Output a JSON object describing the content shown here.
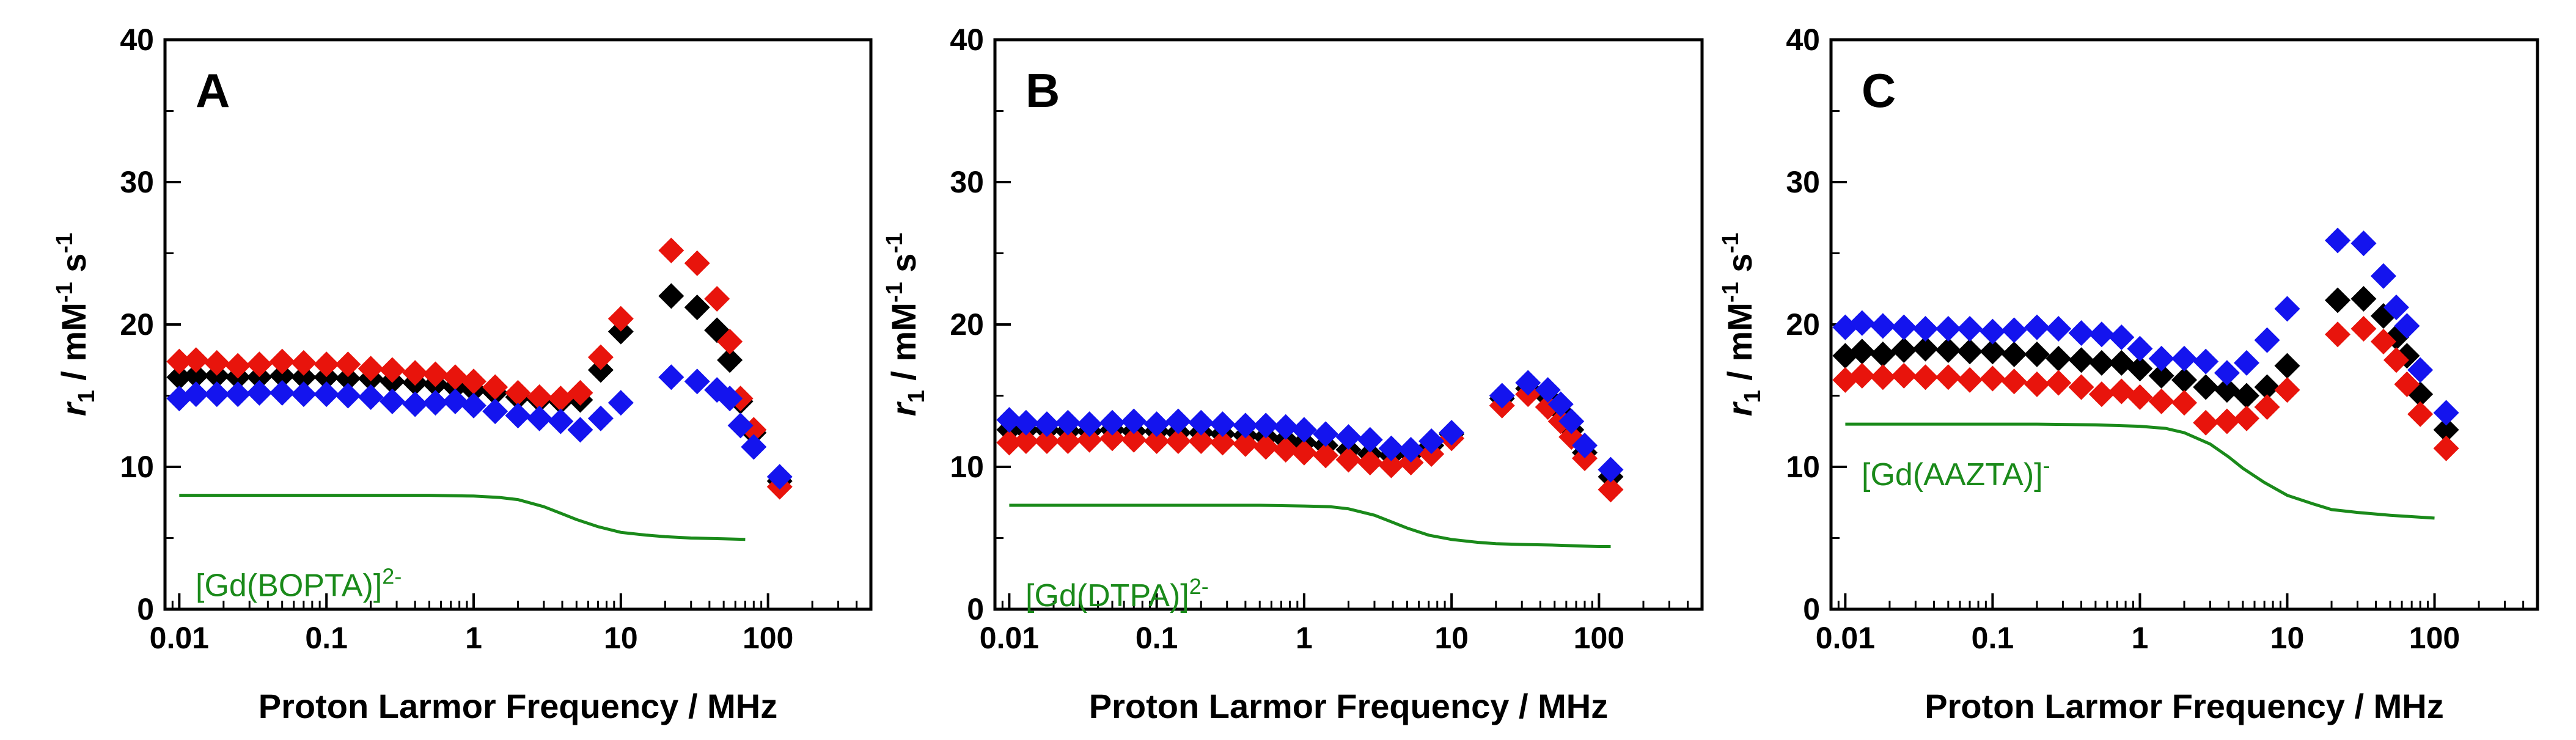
{
  "chart_data": [
    {
      "type": "scatter",
      "panel": "A",
      "xlabel": "Proton Larmor Frequency / MHz",
      "ylabel_main": "r",
      "ylabel_sub": "1",
      "ylabel_rest": " / mM",
      "ylabel_exp1": "-1",
      "ylabel_s": " s",
      "ylabel_exp2": "-1",
      "x_scale": "log",
      "xlim": [
        0.008,
        500
      ],
      "ylim": [
        0,
        40
      ],
      "xticks": [
        "0.01",
        "0.1",
        "1",
        "10",
        "100"
      ],
      "yticks": [
        "0",
        "10",
        "20",
        "30",
        "40"
      ],
      "reference": {
        "label_main": "[Gd(BOPTA)]",
        "label_sup": "2-",
        "color": "#1a8a1a",
        "x": [
          0.01,
          0.02,
          0.05,
          0.1,
          0.2,
          0.5,
          1,
          1.5,
          2,
          3,
          4,
          5,
          7,
          10,
          15,
          20,
          30,
          50,
          70
        ],
        "y": [
          8.0,
          8.0,
          8.0,
          8.0,
          8.0,
          8.0,
          7.95,
          7.85,
          7.7,
          7.2,
          6.7,
          6.3,
          5.8,
          5.4,
          5.2,
          5.1,
          5.0,
          4.95,
          4.9
        ]
      },
      "series": [
        {
          "color": "#000000",
          "x": [
            0.01,
            0.013,
            0.018,
            0.025,
            0.035,
            0.05,
            0.07,
            0.1,
            0.14,
            0.2,
            0.28,
            0.4,
            0.55,
            0.75,
            1,
            1.4,
            2,
            2.8,
            3.9,
            5.3,
            7.3,
            10,
            22,
            33,
            45,
            55,
            65,
            80,
            120
          ],
          "y": [
            16.3,
            16.4,
            16.4,
            16.3,
            16.3,
            16.4,
            16.3,
            16.3,
            16.2,
            16.2,
            16.0,
            15.9,
            15.8,
            15.6,
            15.4,
            15.2,
            14.9,
            14.7,
            14.6,
            14.7,
            16.8,
            19.5,
            22.0,
            21.2,
            19.6,
            17.5,
            14.6,
            12.4,
            9.0
          ]
        },
        {
          "color": "#e8140c",
          "x": [
            0.01,
            0.013,
            0.018,
            0.025,
            0.035,
            0.05,
            0.07,
            0.1,
            0.14,
            0.2,
            0.28,
            0.4,
            0.55,
            0.75,
            1,
            1.4,
            2,
            2.8,
            3.9,
            5.3,
            7.3,
            10,
            22,
            33,
            45,
            55,
            65,
            80,
            120
          ],
          "y": [
            17.4,
            17.5,
            17.3,
            17.1,
            17.2,
            17.4,
            17.3,
            17.2,
            17.2,
            16.9,
            16.8,
            16.6,
            16.5,
            16.3,
            16.0,
            15.6,
            15.2,
            14.9,
            14.8,
            15.2,
            17.7,
            20.4,
            25.2,
            24.3,
            21.8,
            18.8,
            14.8,
            12.6,
            8.6
          ]
        },
        {
          "color": "#1414ee",
          "x": [
            0.01,
            0.013,
            0.018,
            0.025,
            0.035,
            0.05,
            0.07,
            0.1,
            0.14,
            0.2,
            0.28,
            0.4,
            0.55,
            0.75,
            1,
            1.4,
            2,
            2.8,
            3.9,
            5.3,
            7.3,
            10,
            22,
            33,
            45,
            55,
            65,
            80,
            120
          ],
          "y": [
            14.8,
            15.1,
            15.1,
            15.1,
            15.2,
            15.2,
            15.1,
            15.1,
            15.0,
            14.9,
            14.6,
            14.4,
            14.5,
            14.6,
            14.3,
            13.9,
            13.6,
            13.4,
            13.2,
            12.6,
            13.4,
            14.5,
            16.3,
            16.0,
            15.4,
            14.8,
            12.9,
            11.4,
            9.3
          ]
        }
      ]
    },
    {
      "type": "scatter",
      "panel": "B",
      "xlabel": "Proton Larmor Frequency / MHz",
      "ylabel_main": "r",
      "ylabel_sub": "1",
      "ylabel_rest": " / mM",
      "ylabel_exp1": "-1",
      "ylabel_s": " s",
      "ylabel_exp2": "-1",
      "x_scale": "log",
      "xlim": [
        0.008,
        500
      ],
      "ylim": [
        0,
        40
      ],
      "xticks": [
        "0.01",
        "0.1",
        "1",
        "10",
        "100"
      ],
      "yticks": [
        "0",
        "10",
        "20",
        "30",
        "40"
      ],
      "reference": {
        "label_main": "[Gd(DTPA)]",
        "label_sup": "2-",
        "color": "#1a8a1a",
        "x": [
          0.01,
          0.02,
          0.05,
          0.1,
          0.2,
          0.5,
          1,
          1.5,
          2,
          3,
          4,
          5,
          7,
          10,
          15,
          20,
          30,
          50,
          70,
          100,
          120
        ],
        "y": [
          7.3,
          7.3,
          7.3,
          7.3,
          7.3,
          7.3,
          7.25,
          7.2,
          7.05,
          6.6,
          6.1,
          5.7,
          5.2,
          4.9,
          4.7,
          4.6,
          4.55,
          4.5,
          4.45,
          4.4,
          4.4
        ]
      },
      "series": [
        {
          "color": "#000000",
          "x": [
            0.01,
            0.013,
            0.018,
            0.025,
            0.035,
            0.05,
            0.07,
            0.1,
            0.14,
            0.2,
            0.28,
            0.4,
            0.55,
            0.75,
            1,
            1.4,
            2,
            2.8,
            3.9,
            5.3,
            7.3,
            10,
            22,
            33,
            45,
            55,
            65,
            80,
            120
          ],
          "y": [
            12.6,
            12.6,
            12.6,
            12.5,
            12.5,
            12.6,
            12.5,
            12.5,
            12.4,
            12.4,
            12.3,
            12.2,
            12.1,
            11.9,
            11.7,
            11.5,
            11.2,
            10.9,
            10.8,
            10.9,
            11.5,
            12.3,
            14.8,
            15.5,
            14.9,
            13.9,
            12.6,
            11.0,
            9.3
          ]
        },
        {
          "color": "#e8140c",
          "x": [
            0.01,
            0.013,
            0.018,
            0.025,
            0.035,
            0.05,
            0.07,
            0.1,
            0.14,
            0.2,
            0.28,
            0.4,
            0.55,
            0.75,
            1,
            1.4,
            2,
            2.8,
            3.9,
            5.3,
            7.3,
            10,
            22,
            33,
            45,
            55,
            65,
            80,
            120
          ],
          "y": [
            11.7,
            11.8,
            11.8,
            11.8,
            11.9,
            12.0,
            11.9,
            11.8,
            11.8,
            11.8,
            11.7,
            11.6,
            11.4,
            11.2,
            11.0,
            10.8,
            10.5,
            10.3,
            10.1,
            10.3,
            10.9,
            12.0,
            14.3,
            15.1,
            14.2,
            13.2,
            12.1,
            10.6,
            8.4
          ]
        },
        {
          "color": "#1414ee",
          "x": [
            0.01,
            0.013,
            0.018,
            0.025,
            0.035,
            0.05,
            0.07,
            0.1,
            0.14,
            0.2,
            0.28,
            0.4,
            0.55,
            0.75,
            1,
            1.4,
            2,
            2.8,
            3.9,
            5.3,
            7.3,
            10,
            22,
            33,
            45,
            55,
            65,
            80,
            120
          ],
          "y": [
            13.3,
            13.1,
            13.0,
            13.1,
            13.0,
            13.1,
            13.2,
            13.0,
            13.2,
            13.1,
            13.0,
            12.9,
            12.9,
            12.8,
            12.6,
            12.3,
            12.1,
            11.9,
            11.3,
            11.2,
            11.8,
            12.4,
            15.0,
            15.9,
            15.4,
            14.4,
            13.2,
            11.5,
            9.8
          ]
        }
      ]
    },
    {
      "type": "scatter",
      "panel": "C",
      "xlabel": "Proton Larmor Frequency / MHz",
      "ylabel_main": "r",
      "ylabel_sub": "1",
      "ylabel_rest": " / mM",
      "ylabel_exp1": "-1",
      "ylabel_s": " s",
      "ylabel_exp2": "-1",
      "x_scale": "log",
      "xlim": [
        0.008,
        500
      ],
      "ylim": [
        0,
        40
      ],
      "xticks": [
        "0.01",
        "0.1",
        "1",
        "10",
        "100"
      ],
      "yticks": [
        "0",
        "10",
        "20",
        "30",
        "40"
      ],
      "reference": {
        "label_main": "[Gd(AAZTA)]",
        "label_sup": "-",
        "color": "#1a8a1a",
        "x": [
          0.01,
          0.02,
          0.05,
          0.1,
          0.2,
          0.5,
          1,
          1.5,
          2,
          3,
          4,
          5,
          7,
          10,
          15,
          20,
          30,
          50,
          70,
          100
        ],
        "y": [
          13.0,
          13.0,
          13.0,
          13.0,
          13.0,
          12.95,
          12.85,
          12.7,
          12.4,
          11.6,
          10.7,
          9.9,
          8.9,
          8.0,
          7.4,
          7.0,
          6.8,
          6.6,
          6.5,
          6.4
        ]
      },
      "series": [
        {
          "color": "#000000",
          "x": [
            0.01,
            0.013,
            0.018,
            0.025,
            0.035,
            0.05,
            0.07,
            0.1,
            0.14,
            0.2,
            0.28,
            0.4,
            0.55,
            0.75,
            1,
            1.4,
            2,
            2.8,
            3.9,
            5.3,
            7.3,
            10,
            22,
            33,
            45,
            55,
            65,
            80,
            120
          ],
          "y": [
            17.8,
            18.1,
            17.9,
            18.2,
            18.3,
            18.2,
            18.1,
            18.1,
            17.9,
            17.9,
            17.6,
            17.5,
            17.3,
            17.3,
            16.9,
            16.4,
            16.1,
            15.6,
            15.4,
            15.0,
            15.6,
            17.1,
            21.7,
            21.8,
            20.6,
            19.1,
            17.8,
            15.1,
            12.6
          ]
        },
        {
          "color": "#e8140c",
          "x": [
            0.01,
            0.013,
            0.018,
            0.025,
            0.035,
            0.05,
            0.07,
            0.1,
            0.14,
            0.2,
            0.28,
            0.4,
            0.55,
            0.75,
            1,
            1.4,
            2,
            2.8,
            3.9,
            5.3,
            7.3,
            10,
            22,
            33,
            45,
            55,
            65,
            80,
            120
          ],
          "y": [
            16.1,
            16.4,
            16.3,
            16.4,
            16.3,
            16.3,
            16.1,
            16.2,
            16.0,
            15.8,
            15.9,
            15.6,
            15.1,
            15.3,
            14.9,
            14.6,
            14.5,
            13.1,
            13.2,
            13.4,
            14.2,
            15.4,
            19.3,
            19.7,
            18.8,
            17.5,
            15.8,
            13.7,
            11.3
          ]
        },
        {
          "color": "#1414ee",
          "x": [
            0.01,
            0.013,
            0.018,
            0.025,
            0.035,
            0.05,
            0.07,
            0.1,
            0.14,
            0.2,
            0.28,
            0.4,
            0.55,
            0.75,
            1,
            1.4,
            2,
            2.8,
            3.9,
            5.3,
            7.3,
            10,
            22,
            33,
            45,
            55,
            65,
            80,
            120
          ],
          "y": [
            19.8,
            20.1,
            19.9,
            19.8,
            19.7,
            19.7,
            19.7,
            19.5,
            19.6,
            19.8,
            19.7,
            19.4,
            19.3,
            19.1,
            18.3,
            17.6,
            17.6,
            17.4,
            16.6,
            17.3,
            18.9,
            21.1,
            25.9,
            25.7,
            23.4,
            21.2,
            19.9,
            16.8,
            13.8
          ]
        }
      ]
    }
  ]
}
